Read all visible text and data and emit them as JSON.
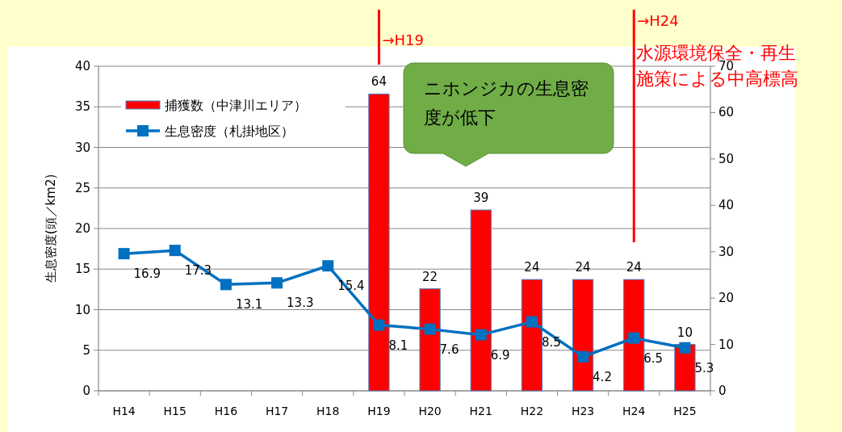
{
  "chart_data": {
    "type": "bar",
    "ylabel": "生息密度(頭／km2)",
    "categories": [
      "H14",
      "H15",
      "H16",
      "H17",
      "H18",
      "H19",
      "H20",
      "H21",
      "H22",
      "H23",
      "H24",
      "H25"
    ],
    "series": [
      {
        "name": "捕獲数（中津川エリア）",
        "axis": "y2",
        "color": "#ff0000",
        "values": [
          null,
          null,
          null,
          null,
          null,
          64,
          22,
          39,
          24,
          24,
          24,
          10
        ]
      },
      {
        "name": "生息密度（札掛地区）",
        "type": "line",
        "color": "#0070c0",
        "values": [
          16.9,
          17.3,
          13.1,
          13.3,
          15.4,
          8.1,
          7.6,
          6.9,
          8.5,
          4.2,
          6.5,
          5.3
        ]
      }
    ],
    "ylim": [
      0,
      40
    ],
    "yticks": [
      0,
      5,
      10,
      15,
      20,
      25,
      30,
      35,
      40
    ],
    "y2lim": [
      0,
      70
    ],
    "y2ticks": [
      0,
      10,
      20,
      30,
      40,
      50,
      60,
      70
    ],
    "grid": "y",
    "legend": "top left",
    "marker": "square",
    "data_labels": true,
    "ref_lines": [
      {
        "axis": "x",
        "value": "H19",
        "label": "→H19",
        "color": "#ff0000"
      },
      {
        "axis": "x",
        "value": "H24",
        "label": "→H24",
        "color": "#ff0000"
      }
    ],
    "annotations": [
      "ニホンジカの生息密度が低下",
      "水源環境保全・再生施策による中高標高"
    ]
  }
}
